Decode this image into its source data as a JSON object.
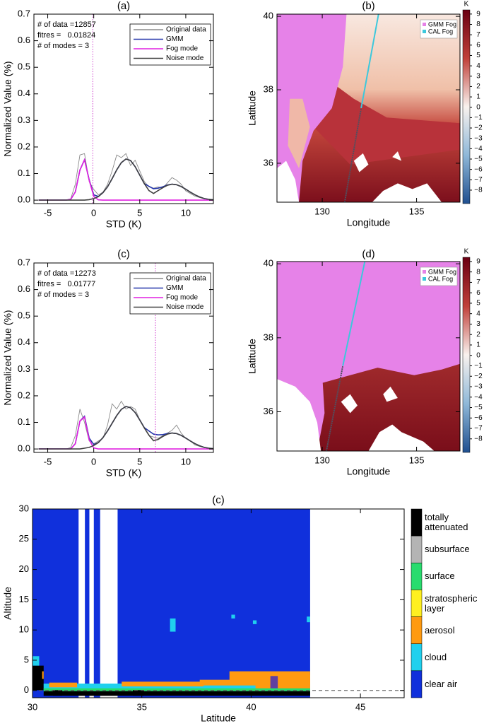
{
  "chart_data": [
    {
      "type": "line",
      "title": "(a)",
      "xlabel": "STD (K)",
      "ylabel": "Normalized Value (%)",
      "annotations": [
        "# of data =12857",
        "fitres =   0.01824",
        "# of modes = 3"
      ],
      "xlim": [
        -6.5,
        13
      ],
      "ylim": [
        -0.013,
        0.7
      ],
      "xticks": [
        -5,
        0,
        5,
        10
      ],
      "yticks": [
        {
          "value": 0,
          "label": "0.0"
        },
        {
          "value": 0.1,
          "label": "0.1"
        },
        {
          "value": 0.2,
          "label": "0.2"
        },
        {
          "value": 0.3,
          "label": "0.3"
        },
        {
          "value": 0.4,
          "label": "0.4"
        },
        {
          "value": 0.5,
          "label": "0.5"
        },
        {
          "value": 0.6,
          "label": "0.6"
        },
        {
          "value": 0.7,
          "label": "0.7"
        }
      ],
      "threshold": -0.1,
      "threshold_color": "#d040d0",
      "x": [
        -6,
        -5.5,
        -5,
        -4.5,
        -4,
        -3.5,
        -3,
        -2.5,
        -2,
        -1.5,
        -1,
        -0.5,
        0,
        0.5,
        1,
        1.5,
        2,
        2.5,
        3,
        3.5,
        4,
        4.5,
        5,
        5.5,
        6,
        6.5,
        7,
        7.5,
        8,
        8.5,
        9,
        9.5,
        10,
        10.5,
        11,
        11.5,
        12,
        12.5,
        13
      ],
      "series": [
        {
          "name": "Original data",
          "color": "#8a8a8a",
          "values": [
            0,
            0,
            0,
            0,
            0,
            0,
            0,
            0.005,
            0.06,
            0.17,
            0.175,
            0.07,
            0.04,
            0.02,
            0.03,
            0.06,
            0.11,
            0.17,
            0.16,
            0.175,
            0.13,
            0.15,
            0.11,
            0.07,
            0.05,
            0.045,
            0.05,
            0.045,
            0.065,
            0.085,
            0.075,
            0.06,
            0.035,
            0.025,
            0.015,
            0.01,
            0.005,
            0.002,
            0
          ]
        },
        {
          "name": "GMM",
          "color": "#2233aa",
          "values": [
            0,
            0,
            0,
            0,
            0,
            0,
            0,
            0.003,
            0.031,
            0.113,
            0.152,
            0.077,
            0.02,
            0.014,
            0.028,
            0.05,
            0.081,
            0.114,
            0.141,
            0.155,
            0.149,
            0.126,
            0.094,
            0.062,
            0.052,
            0.043,
            0.045,
            0.05,
            0.057,
            0.06,
            0.058,
            0.051,
            0.041,
            0.03,
            0.02,
            0.012,
            0.006,
            0.003,
            0.001
          ]
        },
        {
          "name": "Fog mode",
          "color": "#e020e0",
          "values": [
            0,
            0,
            0,
            0,
            0,
            0,
            0,
            0.003,
            0.031,
            0.113,
            0.152,
            0.075,
            0.014,
            0.001,
            0,
            0,
            0,
            0,
            0,
            0,
            0,
            0,
            0,
            0,
            0,
            0,
            0,
            0,
            0,
            0,
            0,
            0,
            0,
            0,
            0,
            0,
            0,
            0,
            0
          ]
        },
        {
          "name": "Noise mode",
          "color": "#404040",
          "values": [
            0,
            0,
            0,
            0,
            0,
            0,
            0,
            0,
            0,
            0,
            0,
            0.002,
            0.006,
            0.013,
            0.028,
            0.05,
            0.081,
            0.114,
            0.141,
            0.155,
            0.149,
            0.126,
            0.094,
            0.062,
            0.036,
            0.025,
            0.036,
            0.047,
            0.056,
            0.06,
            0.058,
            0.051,
            0.041,
            0.03,
            0.02,
            0.012,
            0.006,
            0.003,
            0.001
          ]
        }
      ]
    },
    {
      "type": "map",
      "title": "(b)",
      "xlabel": "Longitude",
      "ylabel": "Latitude",
      "xlim": [
        127.6,
        137.3
      ],
      "ylim": [
        34.94,
        40.06
      ],
      "xticks": [
        130,
        135
      ],
      "yticks": [
        36,
        38,
        40
      ],
      "legend": [
        {
          "name": "GMM Fog",
          "color": "#e682e8"
        },
        {
          "name": "CAL Fog",
          "color": "#3cc8dc"
        }
      ],
      "colorbar": {
        "label": "K",
        "lim": [
          -9.3,
          9.4
        ],
        "ticks": [
          9,
          8,
          7,
          6,
          5,
          4,
          3,
          2,
          1,
          0,
          {
            "value": -1,
            "label": "−1"
          },
          {
            "value": -2,
            "label": "−2"
          },
          {
            "value": -3,
            "label": "−3"
          },
          {
            "value": -4,
            "label": "−4"
          },
          {
            "value": -5,
            "label": "−5"
          },
          {
            "value": -6,
            "label": "−6"
          },
          {
            "value": -7,
            "label": "−7"
          },
          {
            "value": -8,
            "label": "−8"
          }
        ]
      }
    },
    {
      "type": "line",
      "title": "(c)",
      "xlabel": "STD (K)",
      "ylabel": "Normalized Value (%)",
      "annotations": [
        "# of data =12273",
        "fitres =   0.01777",
        "# of modes = 3"
      ],
      "xlim": [
        -6.5,
        13
      ],
      "ylim": [
        -0.013,
        0.7
      ],
      "xticks": [
        -5,
        0,
        5,
        10
      ],
      "yticks": [
        {
          "value": 0,
          "label": "0.0"
        },
        {
          "value": 0.1,
          "label": "0.1"
        },
        {
          "value": 0.2,
          "label": "0.2"
        },
        {
          "value": 0.3,
          "label": "0.3"
        },
        {
          "value": 0.4,
          "label": "0.4"
        },
        {
          "value": 0.5,
          "label": "0.5"
        },
        {
          "value": 0.6,
          "label": "0.6"
        },
        {
          "value": 0.7,
          "label": "0.7"
        }
      ],
      "threshold": 6.7,
      "threshold_color": "#d040d0",
      "x": [
        -6,
        -5.5,
        -5,
        -4.5,
        -4,
        -3.5,
        -3,
        -2.5,
        -2,
        -1.5,
        -1,
        -0.5,
        0,
        0.5,
        1,
        1.5,
        2,
        2.5,
        3,
        3.5,
        4,
        4.5,
        5,
        5.5,
        6,
        6.5,
        7,
        7.5,
        8,
        8.5,
        9,
        9.5,
        10,
        10.5,
        11,
        11.5,
        12,
        12.5,
        13
      ],
      "series": [
        {
          "name": "Original data",
          "color": "#8a8a8a",
          "values": [
            0,
            0,
            0,
            0,
            0,
            0,
            0,
            0.005,
            0.05,
            0.15,
            0.1,
            0.03,
            0.02,
            0.03,
            0.04,
            0.09,
            0.17,
            0.15,
            0.18,
            0.15,
            0.16,
            0.15,
            0.11,
            0.08,
            0.05,
            0.045,
            0.04,
            0.05,
            0.06,
            0.07,
            0.09,
            0.06,
            0.04,
            0.03,
            0.015,
            0.01,
            0.005,
            0.002,
            0
          ]
        },
        {
          "name": "GMM",
          "color": "#2233aa",
          "values": [
            0,
            0,
            0,
            0,
            0,
            0,
            0,
            0,
            0.02,
            0.105,
            0.123,
            0.041,
            0.017,
            0.024,
            0.043,
            0.068,
            0.097,
            0.126,
            0.149,
            0.16,
            0.155,
            0.137,
            0.109,
            0.08,
            0.068,
            0.056,
            0.053,
            0.054,
            0.058,
            0.06,
            0.058,
            0.051,
            0.041,
            0.03,
            0.02,
            0.012,
            0.006,
            0.003,
            0.001
          ]
        },
        {
          "name": "Fog mode",
          "color": "#e020e0",
          "values": [
            0,
            0,
            0,
            0,
            0,
            0,
            0,
            0,
            0.02,
            0.105,
            0.12,
            0.035,
            0.004,
            0,
            0,
            0,
            0,
            0,
            0,
            0,
            0,
            0,
            0,
            0,
            0,
            0,
            0,
            0,
            0,
            0,
            0,
            0,
            0,
            0,
            0,
            0,
            0,
            0,
            0
          ]
        },
        {
          "name": "Noise mode",
          "color": "#404040",
          "values": [
            0,
            0,
            0,
            0,
            0,
            0,
            0,
            0,
            0,
            0,
            0.003,
            0.006,
            0.013,
            0.024,
            0.043,
            0.068,
            0.097,
            0.126,
            0.149,
            0.16,
            0.155,
            0.137,
            0.109,
            0.079,
            0.052,
            0.031,
            0.036,
            0.047,
            0.056,
            0.06,
            0.058,
            0.051,
            0.041,
            0.03,
            0.02,
            0.012,
            0.006,
            0.003,
            0.001
          ]
        }
      ]
    },
    {
      "type": "map",
      "title": "(d)",
      "xlabel": "Longitude",
      "ylabel": "Latitude",
      "xlim": [
        127.6,
        137.3
      ],
      "ylim": [
        34.94,
        40.06
      ],
      "xticks": [
        130,
        135
      ],
      "yticks": [
        36,
        38,
        40
      ],
      "legend": [
        {
          "name": "GMM Fog",
          "color": "#e682e8"
        },
        {
          "name": "CAL Fog",
          "color": "#3cc8dc"
        }
      ],
      "colorbar": {
        "label": "K",
        "lim": [
          -9.3,
          9.4
        ],
        "ticks": [
          9,
          8,
          7,
          6,
          5,
          4,
          3,
          2,
          1,
          0,
          {
            "value": -1,
            "label": "−1"
          },
          {
            "value": -2,
            "label": "−2"
          },
          {
            "value": -3,
            "label": "−3"
          },
          {
            "value": -4,
            "label": "−4"
          },
          {
            "value": -5,
            "label": "−5"
          },
          {
            "value": -6,
            "label": "−6"
          },
          {
            "value": -7,
            "label": "−7"
          },
          {
            "value": -8,
            "label": "−8"
          }
        ]
      }
    },
    {
      "type": "classification",
      "title": "(c)",
      "xlabel": "Latitude",
      "ylabel": "Altitude",
      "xlim": [
        30,
        47
      ],
      "ylim": [
        -1.2,
        30
      ],
      "xticks": [
        30,
        35,
        40,
        45
      ],
      "yticks": [
        0,
        5,
        10,
        15,
        20,
        25,
        30
      ],
      "categories": [
        "totally attenuated",
        "subsurface",
        "surface",
        "stratospheric layer",
        "aerosol",
        "cloud",
        "clear air"
      ],
      "colors": [
        "#000000",
        "#b4b4b4",
        "#28dc6e",
        "#fff020",
        "#ff9a10",
        "#20d0ee",
        "#1030dc"
      ]
    }
  ]
}
